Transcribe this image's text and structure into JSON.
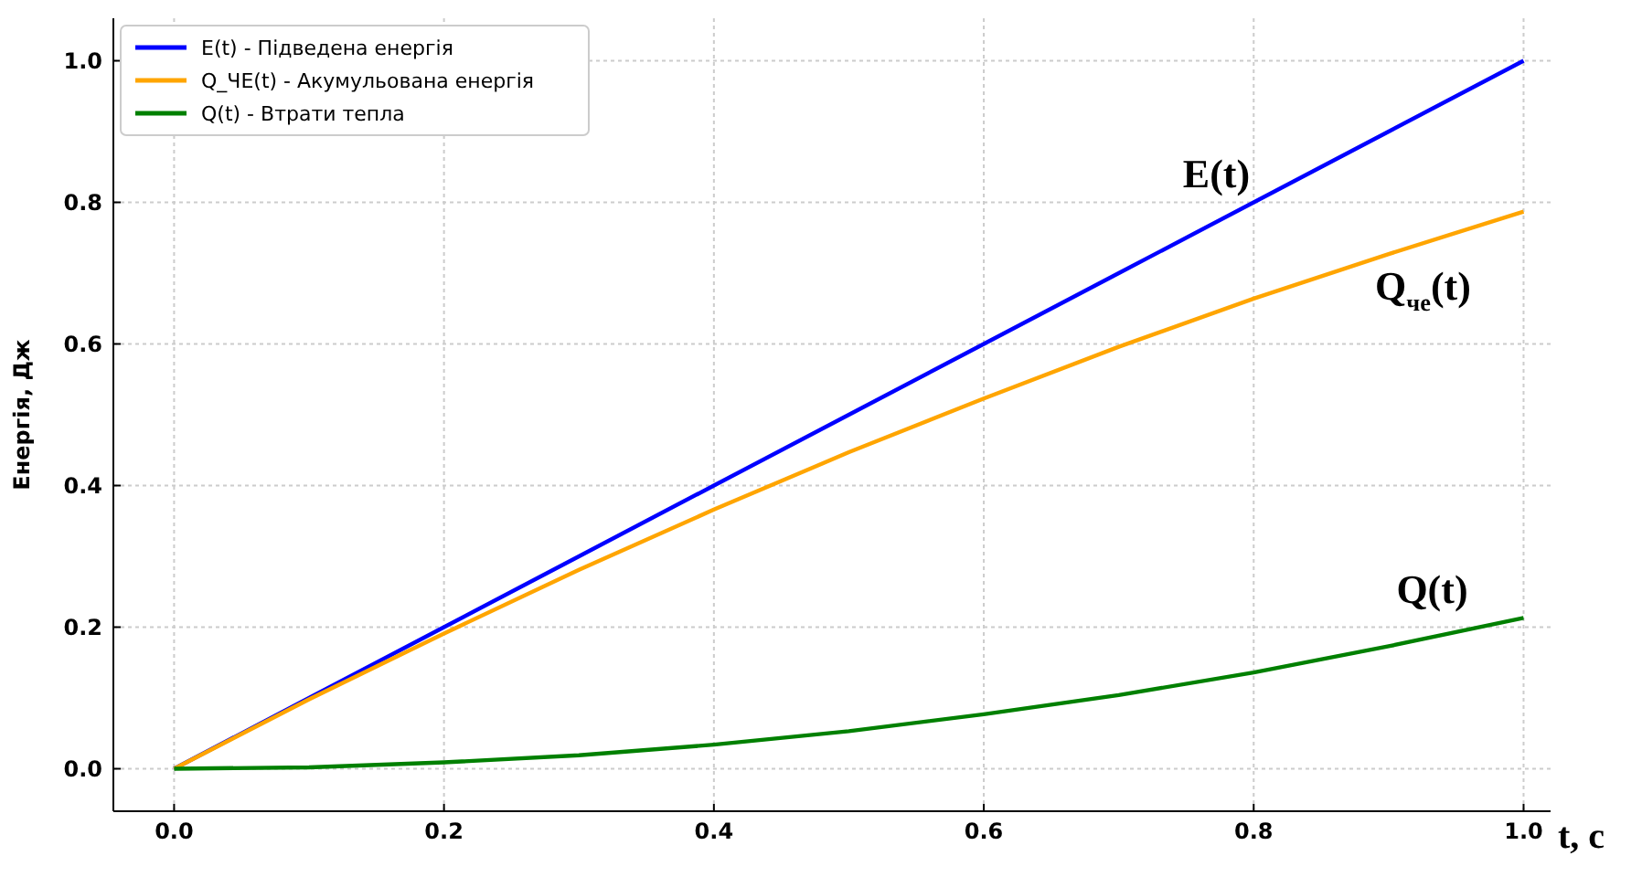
{
  "chart_data": {
    "type": "line",
    "xlabel": "t, c",
    "ylabel": "Енергія, Дж",
    "x": [
      0,
      0.1,
      0.2,
      0.3,
      0.4,
      0.5,
      0.6,
      0.7,
      0.8,
      0.9,
      1.0
    ],
    "series": [
      {
        "name": "E(t) - Підведена енергія",
        "color": "#0000ff",
        "values": [
          0,
          0.1,
          0.2,
          0.3,
          0.4,
          0.5,
          0.6,
          0.7,
          0.8,
          0.9,
          1.0
        ]
      },
      {
        "name": "Q_ЧЕ(t) - Акумульована енергія",
        "color": "#ffa500",
        "values": [
          0,
          0.098,
          0.191,
          0.281,
          0.366,
          0.447,
          0.523,
          0.596,
          0.664,
          0.727,
          0.787
        ]
      },
      {
        "name": "Q(t) - Втрати тепла",
        "color": "#008000",
        "values": [
          0,
          0.002,
          0.009,
          0.019,
          0.034,
          0.053,
          0.077,
          0.104,
          0.136,
          0.173,
          0.213
        ]
      }
    ],
    "xlim": [
      -0.045,
      1.02
    ],
    "ylim": [
      -0.06,
      1.06
    ],
    "xticks": [
      {
        "value": 0,
        "label": "0.0"
      },
      {
        "value": 0.2,
        "label": "0.2"
      },
      {
        "value": 0.4,
        "label": "0.4"
      },
      {
        "value": 0.6,
        "label": "0.6"
      },
      {
        "value": 0.8,
        "label": "0.8"
      },
      {
        "value": 1,
        "label": "1.0"
      }
    ],
    "yticks": [
      {
        "value": 0,
        "label": "0.0"
      },
      {
        "value": 0.2,
        "label": "0.2"
      },
      {
        "value": 0.4,
        "label": "0.4"
      },
      {
        "value": 0.6,
        "label": "0.6"
      },
      {
        "value": 0.8,
        "label": "0.8"
      },
      {
        "value": 1,
        "label": "1.0"
      }
    ],
    "annotations": [
      "E(t)",
      "Q$_{че}$(t)",
      "Q(t)"
    ],
    "grid": true,
    "legend": "top left",
    "line_style": "solid",
    "marker": "none"
  }
}
